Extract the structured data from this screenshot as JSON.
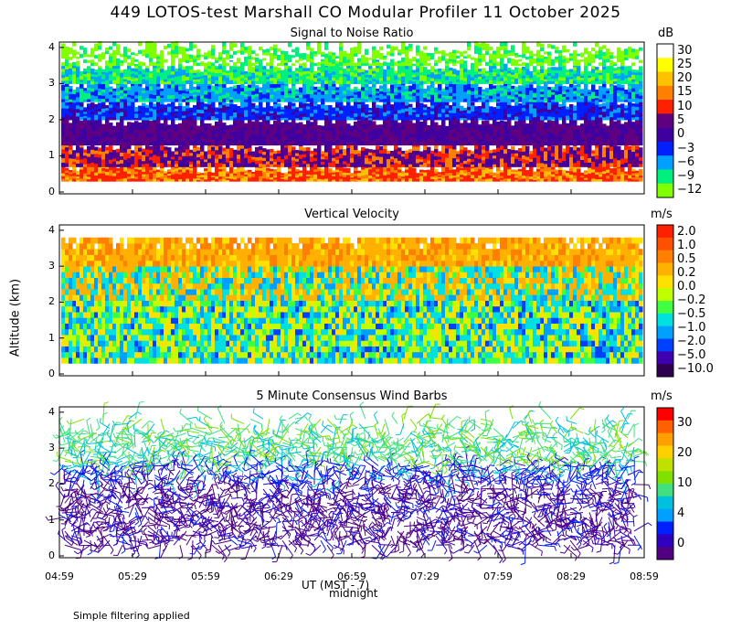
{
  "title": "449 LOTOS-test Marshall CO Modular Profiler 11 October 2025",
  "footer": "Simple filtering applied",
  "x_axis": {
    "label": "UT (MST - 7)",
    "midnight_label": "midnight",
    "ticks": [
      "04:59",
      "05:29",
      "05:59",
      "06:29",
      "06:59",
      "07:29",
      "07:59",
      "08:29",
      "08:59"
    ]
  },
  "y_axis": {
    "label": "Altitude (km)",
    "ticks": [
      "0",
      "1",
      "2",
      "3",
      "4"
    ]
  },
  "chart_data": [
    {
      "type": "heatmap",
      "title": "Signal to Noise Ratio",
      "units": "dB",
      "colorbar_labels": [
        "30",
        "25",
        "20",
        "15",
        "10",
        "5",
        "0",
        "−3",
        "−6",
        "−9",
        "−12"
      ],
      "colorbar_colors": [
        "#ffffff",
        "#ffff00",
        "#ffc000",
        "#ff8000",
        "#ff2000",
        "#600080",
        "#4000a0",
        "#0020ff",
        "#00a0ff",
        "#00f080",
        "#80ff00"
      ],
      "ylim": [
        0,
        4
      ],
      "xlim": [
        "04:59",
        "08:59"
      ],
      "layers": [
        {
          "alt_range": [
            0.3,
            1.2
          ],
          "snr_db": "10 to 20"
        },
        {
          "alt_range": [
            1.2,
            2.0
          ],
          "snr_db": "0 to 5"
        },
        {
          "alt_range": [
            2.0,
            2.5
          ],
          "snr_db": "-3"
        },
        {
          "alt_range": [
            2.5,
            3.0
          ],
          "snr_db": "-6"
        },
        {
          "alt_range": [
            3.0,
            3.5
          ],
          "snr_db": "-9"
        },
        {
          "alt_range": [
            3.5,
            4.0
          ],
          "snr_db": "-12"
        }
      ]
    },
    {
      "type": "heatmap",
      "title": "Vertical Velocity",
      "units": "m/s",
      "colorbar_labels": [
        "2.0",
        "1.0",
        "0.5",
        "0.2",
        "0.0",
        "−0.2",
        "−0.5",
        "−1.0",
        "−2.0",
        "−5.0",
        "−10.0"
      ],
      "colorbar_colors": [
        "#ff2000",
        "#ff5000",
        "#ff8000",
        "#ffb000",
        "#ffe000",
        "#c0ff00",
        "#40ff40",
        "#00e0e0",
        "#00a0ff",
        "#0040ff",
        "#4000b0",
        "#300050"
      ],
      "ylim": [
        0,
        4
      ],
      "xlim": [
        "04:59",
        "08:59"
      ]
    },
    {
      "type": "scatter",
      "title": "5 Minute Consensus Wind Barbs",
      "units": "m/s",
      "colorbar_labels": [
        "30",
        "20",
        "10",
        "4",
        "0"
      ],
      "colorbar_colors": [
        "#ff0000",
        "#ff6000",
        "#ffa000",
        "#ffd000",
        "#c0e000",
        "#80e000",
        "#40e080",
        "#00c0e0",
        "#00a0ff",
        "#0020ff",
        "#3000c0",
        "#500080"
      ],
      "ylim": [
        0,
        4
      ],
      "xlim": [
        "04:59",
        "08:59"
      ]
    }
  ]
}
